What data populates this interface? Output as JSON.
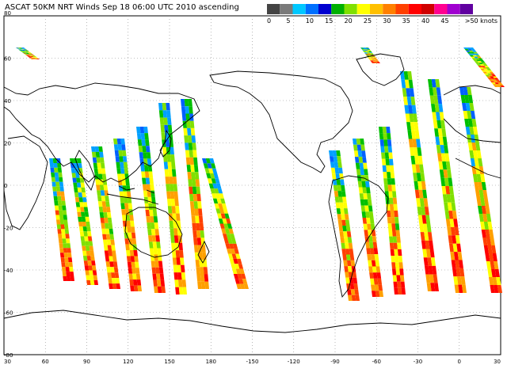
{
  "title": "ASCAT 50KM NRT Winds Sep 18 06:00 UTC 2010 ascending",
  "legend": {
    "labels": [
      "0",
      "5",
      "10",
      "15",
      "20",
      "25",
      "30",
      "35",
      "40",
      "45",
      ">50 knots"
    ],
    "colors": [
      "#444444",
      "#7a7a7a",
      "#00c8ff",
      "#0070ff",
      "#0000d0",
      "#00b000",
      "#80e000",
      "#ffff00",
      "#ffc000",
      "#ff8000",
      "#ff4000",
      "#ff0000",
      "#d00000",
      "#ff0090",
      "#a000d0",
      "#6000a0"
    ]
  },
  "axes": {
    "lat_labels": [
      "80",
      "60",
      "40",
      "20",
      "0",
      "-20",
      "-40",
      "-60",
      "-80"
    ],
    "lon_labels": [
      "30",
      "60",
      "90",
      "120",
      "150",
      "180",
      "-150",
      "-120",
      "-90",
      "-60",
      "-30",
      "0",
      "30"
    ]
  },
  "swath_colors": [
    "#0060ff",
    "#00a0ff",
    "#00c000",
    "#80e000",
    "#ffff00",
    "#ffa000",
    "#ff4000",
    "#ff0000"
  ]
}
